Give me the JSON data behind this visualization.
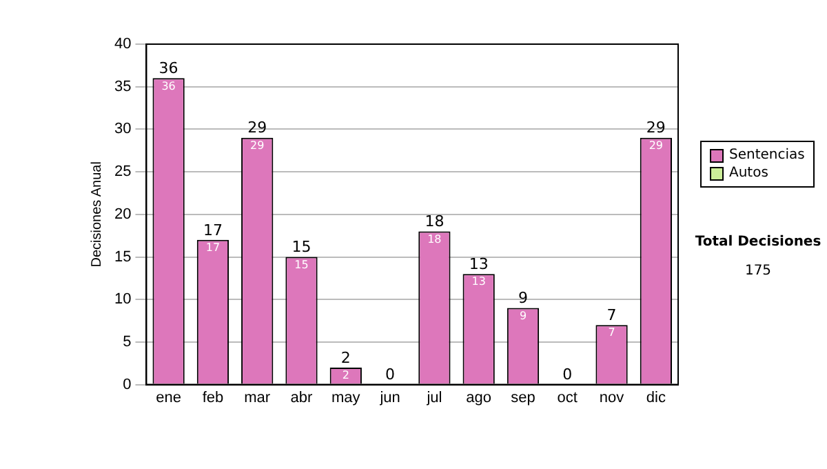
{
  "chart_data": {
    "type": "bar",
    "stacked": true,
    "ylabel": "Decisiones Anual",
    "categories": [
      "ene",
      "feb",
      "mar",
      "abr",
      "may",
      "jun",
      "jul",
      "ago",
      "sep",
      "oct",
      "nov",
      "dic"
    ],
    "series": [
      {
        "name": "Sentencias",
        "color": "#dd77bb",
        "values": [
          36,
          17,
          29,
          15,
          2,
          0,
          18,
          13,
          9,
          0,
          7,
          29
        ],
        "value_labels": [
          "36",
          "17",
          "29",
          "15",
          "2",
          null,
          "18",
          "13",
          "9",
          null,
          "7",
          "29"
        ]
      },
      {
        "name": "Autos",
        "color": "#ccee99",
        "values": [
          0,
          0,
          0,
          0,
          0,
          0,
          0,
          0,
          0,
          0,
          0,
          0
        ]
      }
    ],
    "totals": [
      "36",
      "17",
      "29",
      "15",
      "2",
      "0",
      "18",
      "13",
      "9",
      "0",
      "7",
      "29"
    ],
    "ylim": [
      0,
      40
    ],
    "yticks": [
      0,
      5,
      10,
      15,
      20,
      25,
      30,
      35,
      40
    ],
    "grid": "y",
    "legend": "right",
    "annotations": [
      "Total Decisiones",
      "175"
    ]
  }
}
